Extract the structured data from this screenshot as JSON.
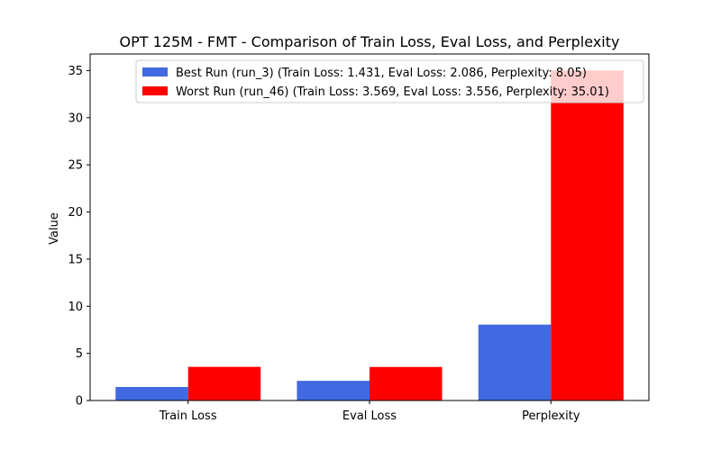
{
  "chart_data": {
    "type": "bar",
    "title": "OPT 125M - FMT - Comparison of Train Loss, Eval Loss, and Perplexity",
    "xlabel": "",
    "ylabel": "Value",
    "categories": [
      "Train Loss",
      "Eval Loss",
      "Perplexity"
    ],
    "series": [
      {
        "name": "Best Run (run_3) (Train Loss: 1.431, Eval Loss: 2.086, Perplexity: 8.05)",
        "color": "#4169e1",
        "values": [
          1.431,
          2.086,
          8.05
        ]
      },
      {
        "name": "Worst Run (run_46) (Train Loss: 3.569, Eval Loss: 3.556, Perplexity: 35.01)",
        "color": "#ff0000",
        "values": [
          3.569,
          3.556,
          35.01
        ]
      }
    ],
    "ylim": [
      0,
      36.76
    ],
    "yticks": [
      0,
      5,
      10,
      15,
      20,
      25,
      30,
      35
    ],
    "grid": false,
    "legend": "upper-right"
  }
}
